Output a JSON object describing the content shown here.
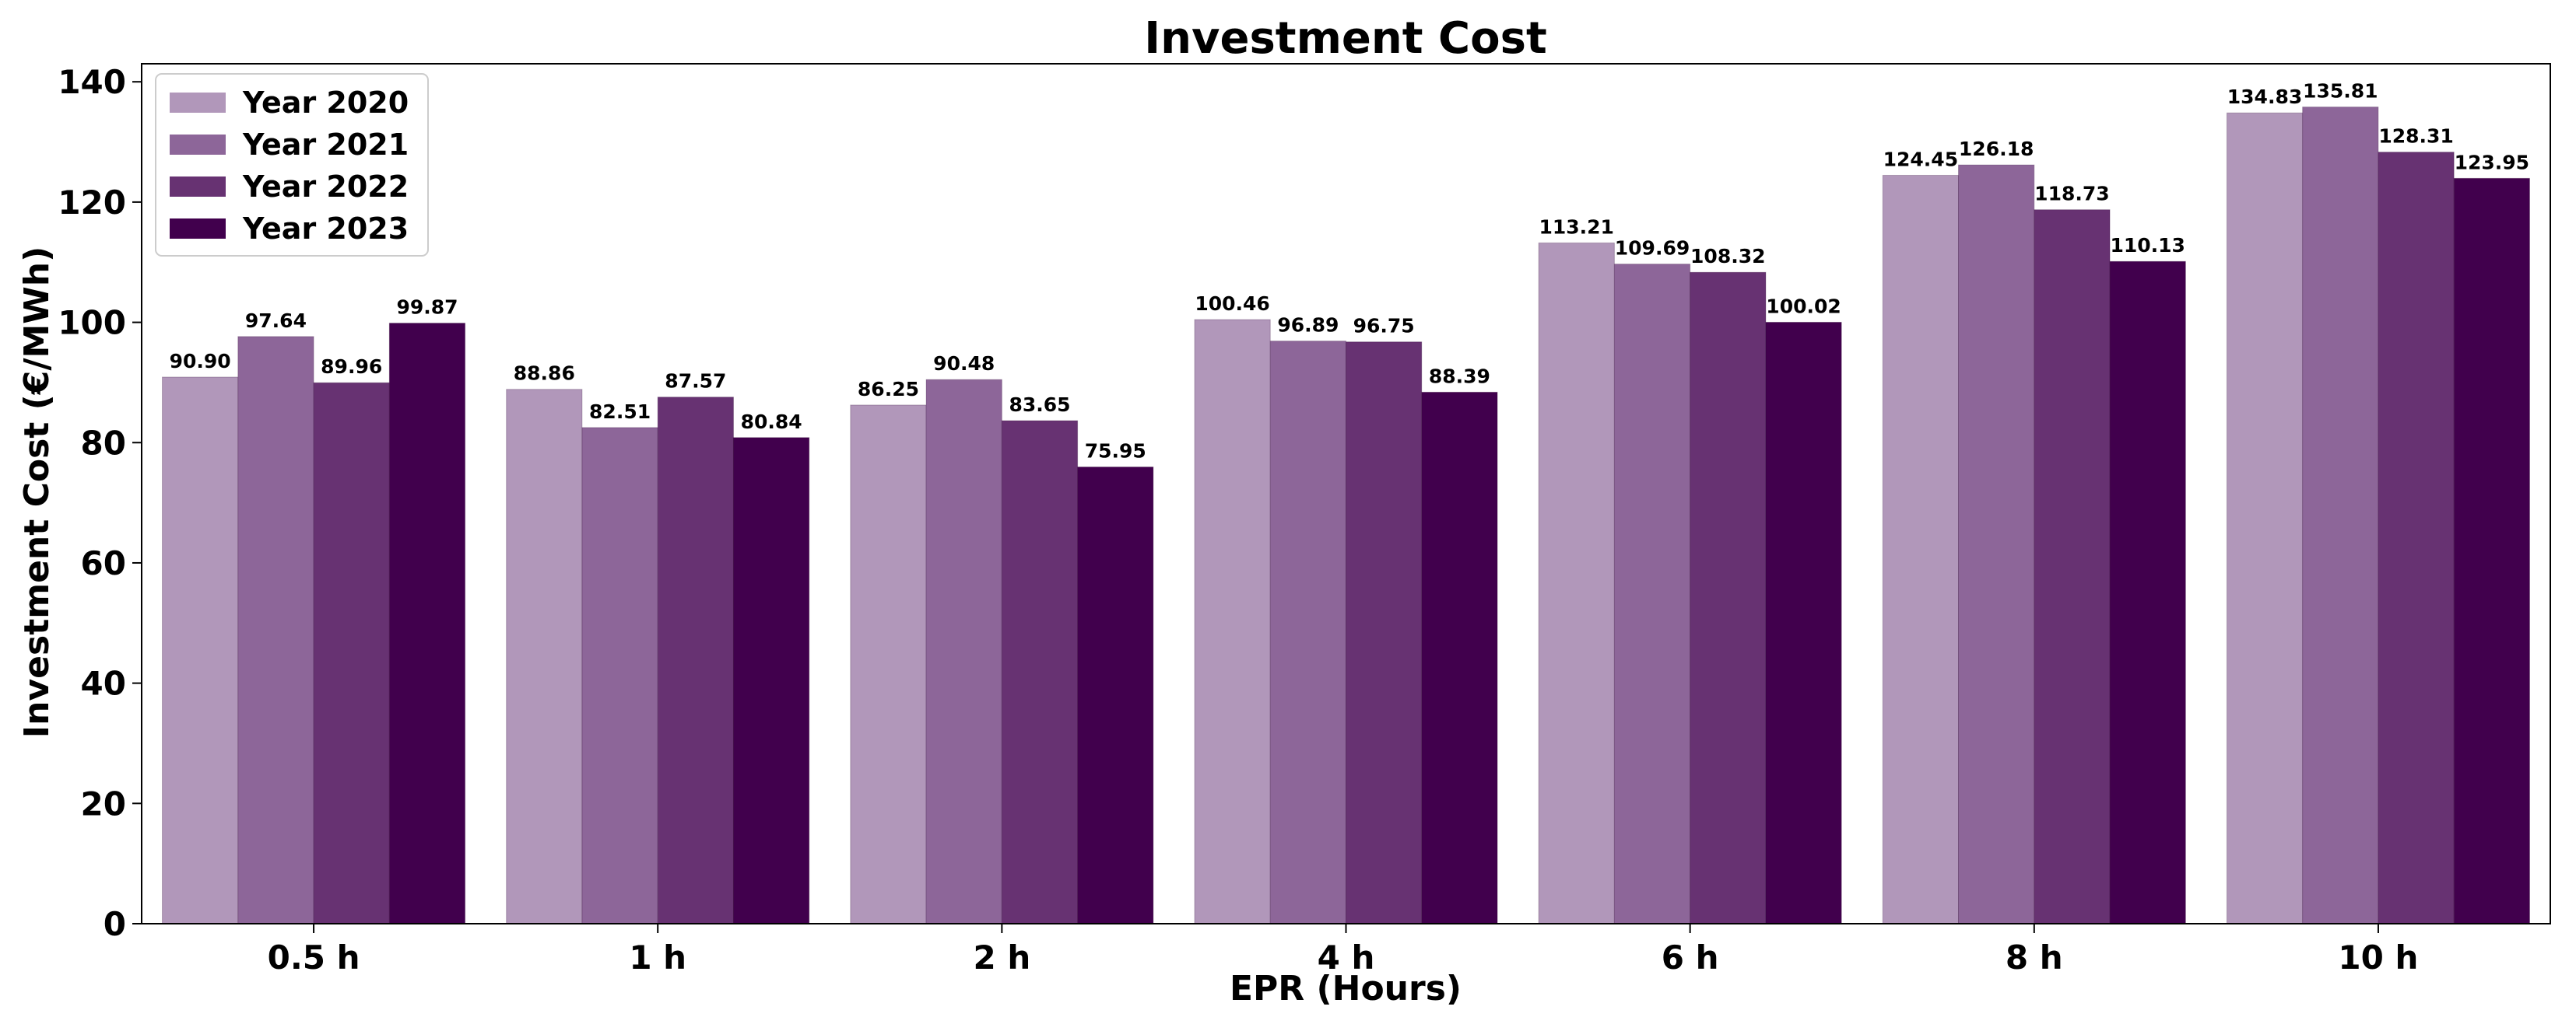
{
  "chart_data": {
    "type": "bar",
    "title": "Investment Cost",
    "xlabel": "EPR (Hours)",
    "ylabel": "Investment Cost (€/MWh)",
    "categories": [
      "0.5 h",
      "1 h",
      "2 h",
      "4 h",
      "6 h",
      "8 h",
      "10 h"
    ],
    "ylim": [
      0,
      143
    ],
    "yticks": [
      0,
      20,
      40,
      60,
      80,
      100,
      120,
      140
    ],
    "grid": false,
    "legend_position": "top-left",
    "series": [
      {
        "name": "Year 2020",
        "color": "#b197ba",
        "values": [
          90.9,
          88.86,
          86.25,
          100.46,
          113.21,
          124.45,
          134.83
        ]
      },
      {
        "name": "Year 2021",
        "color": "#8d6699",
        "values": [
          97.64,
          82.51,
          90.48,
          96.89,
          109.69,
          126.18,
          135.81
        ]
      },
      {
        "name": "Year 2022",
        "color": "#673272",
        "values": [
          89.96,
          87.57,
          83.65,
          96.75,
          108.32,
          118.73,
          128.31
        ]
      },
      {
        "name": "Year 2023",
        "color": "#41004d",
        "values": [
          99.87,
          80.84,
          75.95,
          88.39,
          100.02,
          110.13,
          123.95
        ]
      }
    ],
    "value_labels": [
      [
        "90.90",
        "88.86",
        "86.25",
        "100.46",
        "113.21",
        "124.45",
        "134.83"
      ],
      [
        "97.64",
        "82.51",
        "90.48",
        "96.89",
        "109.69",
        "126.18",
        "135.81"
      ],
      [
        "89.96",
        "87.57",
        "83.65",
        "96.75",
        "108.32",
        "118.73",
        "128.31"
      ],
      [
        "99.87",
        "80.84",
        "75.95",
        "88.39",
        "100.02",
        "110.13",
        "123.95"
      ]
    ]
  }
}
